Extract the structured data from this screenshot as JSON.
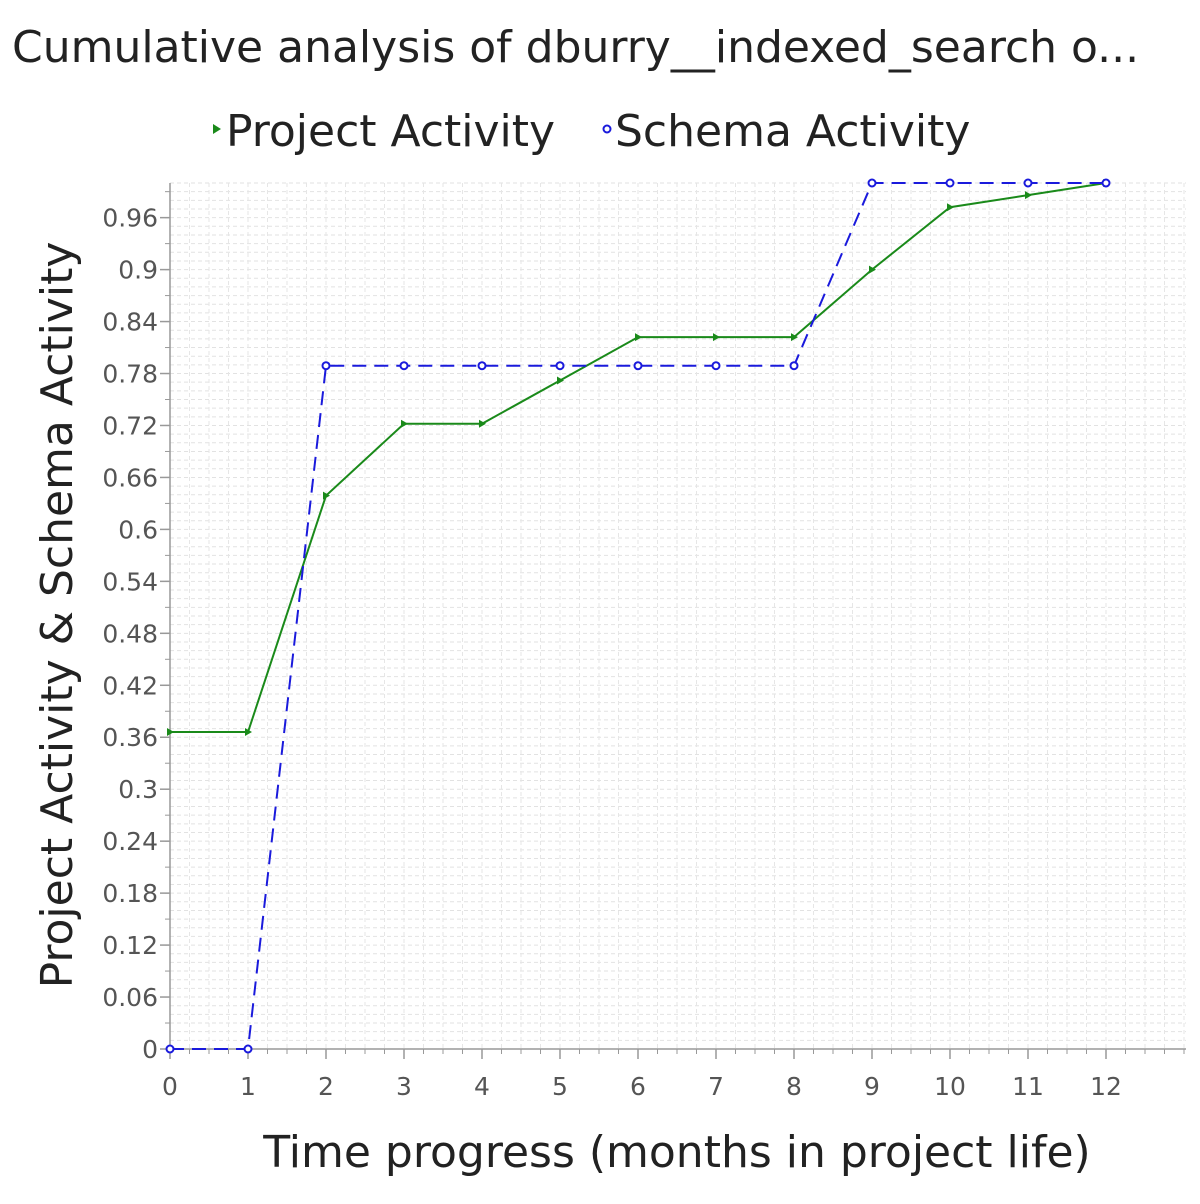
{
  "chart_data": {
    "type": "line",
    "title": "Cumulative analysis of dburry__indexed_search o...",
    "xlabel": "Time progress (months in project life)",
    "ylabel": "Project Activity & Schema Activity",
    "x": [
      0,
      1,
      2,
      3,
      4,
      5,
      6,
      7,
      8,
      9,
      10,
      11,
      12
    ],
    "xlim": [
      0,
      13
    ],
    "ylim": [
      0,
      1.0
    ],
    "x_ticks": [
      "0",
      "1",
      "2",
      "3",
      "4",
      "5",
      "6",
      "7",
      "8",
      "9",
      "10",
      "11",
      "12"
    ],
    "y_ticks": [
      "0",
      "0.06",
      "0.12",
      "0.18",
      "0.24",
      "0.3",
      "0.36",
      "0.42",
      "0.48",
      "0.54",
      "0.6",
      "0.66",
      "0.72",
      "0.78",
      "0.84",
      "0.9",
      "0.96"
    ],
    "grid": true,
    "legend_position": "top",
    "series": [
      {
        "name": "Project Activity",
        "color": "#1a8a1a",
        "line_style": "solid",
        "marker": "triangle-right",
        "values": [
          0.366,
          0.366,
          0.639,
          0.722,
          0.722,
          0.772,
          0.822,
          0.822,
          0.822,
          0.9,
          0.972,
          0.986,
          1.0
        ]
      },
      {
        "name": "Schema Activity",
        "color": "#1a1adc",
        "line_style": "dashed",
        "marker": "circle",
        "values": [
          0.0,
          0.0,
          0.789,
          0.789,
          0.789,
          0.789,
          0.789,
          0.789,
          0.789,
          1.0,
          1.0,
          1.0,
          1.0
        ]
      }
    ]
  }
}
